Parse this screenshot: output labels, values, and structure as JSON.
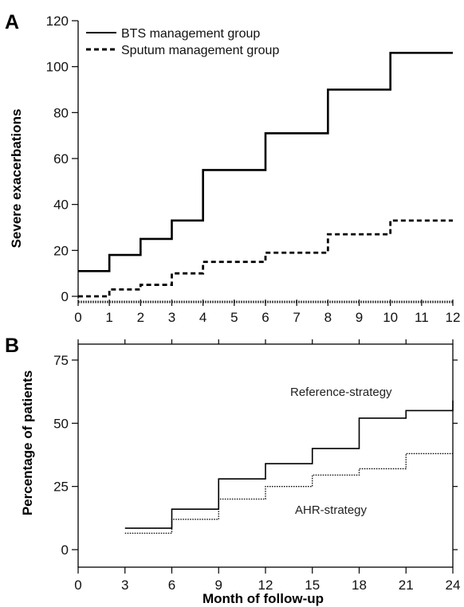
{
  "chart_data": [
    {
      "panel_label": "A",
      "type": "line",
      "step": true,
      "ylabel": "Severe exacerbations",
      "xlabel": "",
      "xlim": [
        0,
        12
      ],
      "ylim": [
        0,
        120
      ],
      "x_ticks": [
        "0",
        "1",
        "2",
        "3",
        "4",
        "5",
        "6",
        "7",
        "8",
        "9",
        "10",
        "11",
        "12"
      ],
      "y_ticks": [
        "0",
        "20",
        "40",
        "60",
        "80",
        "100",
        "120"
      ],
      "legend_position": "top-left",
      "series": [
        {
          "name": "BTS management group",
          "style": "solid",
          "x": [
            0,
            1,
            2,
            3,
            4,
            6,
            8,
            10,
            12
          ],
          "y": [
            11,
            18,
            25,
            33,
            55,
            71,
            90,
            106,
            106
          ]
        },
        {
          "name": "Sputum management group",
          "style": "dashed",
          "x": [
            0,
            1,
            2,
            3,
            4,
            6,
            8,
            10,
            12
          ],
          "y": [
            0,
            3,
            5,
            10,
            15,
            19,
            27,
            33,
            33
          ]
        }
      ]
    },
    {
      "panel_label": "B",
      "type": "line",
      "step": true,
      "ylabel": "Percentage of patients",
      "xlabel": "Month of follow-up",
      "xlim": [
        0,
        24
      ],
      "ylim": [
        0,
        75
      ],
      "x_ticks": [
        "0",
        "3",
        "6",
        "9",
        "12",
        "15",
        "18",
        "21",
        "24"
      ],
      "y_ticks": [
        "0",
        "25",
        "50",
        "75"
      ],
      "series": [
        {
          "name": "Reference-strategy",
          "style": "solid",
          "x": [
            3,
            6,
            9,
            12,
            15,
            18,
            21,
            24
          ],
          "y": [
            8.5,
            16,
            28,
            34,
            40,
            52,
            55,
            59
          ]
        },
        {
          "name": "AHR-strategy",
          "style": "dotted",
          "x": [
            3,
            6,
            9,
            12,
            15,
            18,
            21,
            24
          ],
          "y": [
            6.5,
            12,
            20,
            25,
            29.5,
            32,
            38,
            38
          ]
        }
      ]
    }
  ]
}
